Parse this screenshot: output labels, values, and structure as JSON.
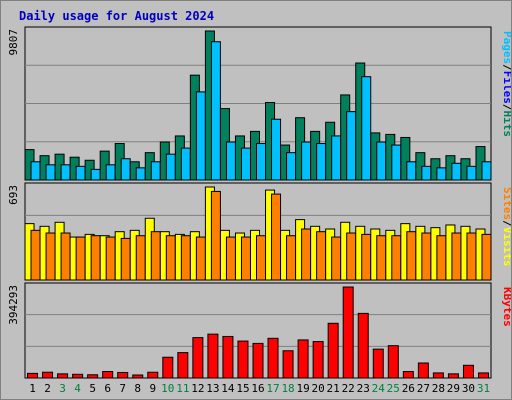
{
  "title": "Daily usage for August 2024",
  "chart_data": [
    {
      "type": "bar",
      "panel": "hits-files-pages",
      "ymax_label": "9807",
      "x": [
        1,
        2,
        3,
        4,
        5,
        6,
        7,
        8,
        9,
        10,
        11,
        12,
        13,
        14,
        15,
        16,
        17,
        18,
        19,
        20,
        21,
        22,
        23,
        24,
        25,
        26,
        27,
        28,
        29,
        30,
        31
      ],
      "series": [
        {
          "name": "Hits",
          "color": "#00805c",
          "values": [
            2000,
            1600,
            1700,
            1500,
            1300,
            1900,
            2400,
            1200,
            1800,
            2500,
            2900,
            6900,
            9807,
            4700,
            2900,
            3200,
            5100,
            2300,
            4100,
            3200,
            3800,
            5600,
            7700,
            3100,
            3000,
            2800,
            1800,
            1400,
            1600,
            1400,
            2200
          ]
        },
        {
          "name": "Files",
          "color": "#0000ff",
          "values": [
            0,
            0,
            0,
            0,
            0,
            0,
            0,
            0,
            0,
            0,
            0,
            0,
            0,
            0,
            0,
            0,
            0,
            0,
            0,
            0,
            0,
            0,
            0,
            0,
            0,
            0,
            0,
            0,
            0,
            0,
            0
          ]
        },
        {
          "name": "Pages",
          "color": "#00c0ff",
          "values": [
            1200,
            1000,
            1000,
            900,
            700,
            1000,
            1400,
            800,
            1200,
            1700,
            2100,
            5800,
            9100,
            2500,
            2100,
            2400,
            4000,
            1800,
            2500,
            2400,
            2900,
            4500,
            6800,
            2500,
            2300,
            1200,
            900,
            800,
            1100,
            900,
            1200
          ]
        }
      ]
    },
    {
      "type": "bar",
      "panel": "visits-sites",
      "ymax_label": "693",
      "x": [
        1,
        2,
        3,
        4,
        5,
        6,
        7,
        8,
        9,
        10,
        11,
        12,
        13,
        14,
        15,
        16,
        17,
        18,
        19,
        20,
        21,
        22,
        23,
        24,
        25,
        26,
        27,
        28,
        29,
        30,
        31
      ],
      "series": [
        {
          "name": "Visits",
          "color": "#ffff00",
          "values": [
            420,
            400,
            430,
            320,
            340,
            330,
            360,
            370,
            460,
            360,
            340,
            360,
            693,
            370,
            350,
            370,
            670,
            370,
            450,
            400,
            380,
            430,
            400,
            380,
            370,
            420,
            400,
            390,
            410,
            400,
            380
          ]
        },
        {
          "name": "Sites",
          "color": "#ff8000",
          "values": [
            370,
            350,
            350,
            320,
            330,
            320,
            310,
            330,
            360,
            330,
            330,
            320,
            660,
            320,
            320,
            330,
            640,
            330,
            380,
            360,
            320,
            350,
            340,
            330,
            330,
            360,
            350,
            330,
            350,
            350,
            340
          ]
        }
      ]
    },
    {
      "type": "bar",
      "panel": "kbytes",
      "ymax_label": "394293",
      "x": [
        1,
        2,
        3,
        4,
        5,
        6,
        7,
        8,
        9,
        10,
        11,
        12,
        13,
        14,
        15,
        16,
        17,
        18,
        19,
        20,
        21,
        22,
        23,
        24,
        25,
        26,
        27,
        28,
        29,
        30,
        31
      ],
      "series": [
        {
          "name": "KBytes",
          "color": "#ff0000",
          "values": [
            20000,
            25000,
            18000,
            16000,
            14000,
            28000,
            24000,
            13000,
            25000,
            90000,
            110000,
            175000,
            190000,
            180000,
            160000,
            150000,
            172000,
            118000,
            165000,
            158000,
            237000,
            394293,
            280000,
            125000,
            140000,
            28000,
            65000,
            22000,
            18000,
            55000,
            22000
          ]
        }
      ]
    }
  ],
  "legends": {
    "top": [
      {
        "text": "Pages",
        "color": "#00c0ff"
      },
      {
        "text": "/",
        "color": "#000000"
      },
      {
        "text": "Files",
        "color": "#0000ff"
      },
      {
        "text": "/",
        "color": "#000000"
      },
      {
        "text": "Hits",
        "color": "#00805c"
      }
    ],
    "mid": [
      {
        "text": "Sites",
        "color": "#ff8000"
      },
      {
        "text": "/",
        "color": "#000000"
      },
      {
        "text": "Visits",
        "color": "#ffff00"
      }
    ],
    "bottom": [
      {
        "text": "KBytes",
        "color": "#ff0000"
      }
    ]
  },
  "weekend_days": [
    3,
    4,
    10,
    11,
    17,
    18,
    24,
    25,
    31
  ],
  "day_label_colors": {
    "weekday": "#000000",
    "weekend": "#008040"
  },
  "colors": {
    "panel_bg": "#c0c0c0",
    "gridline": "#808080",
    "bar_outline": "#000000"
  }
}
